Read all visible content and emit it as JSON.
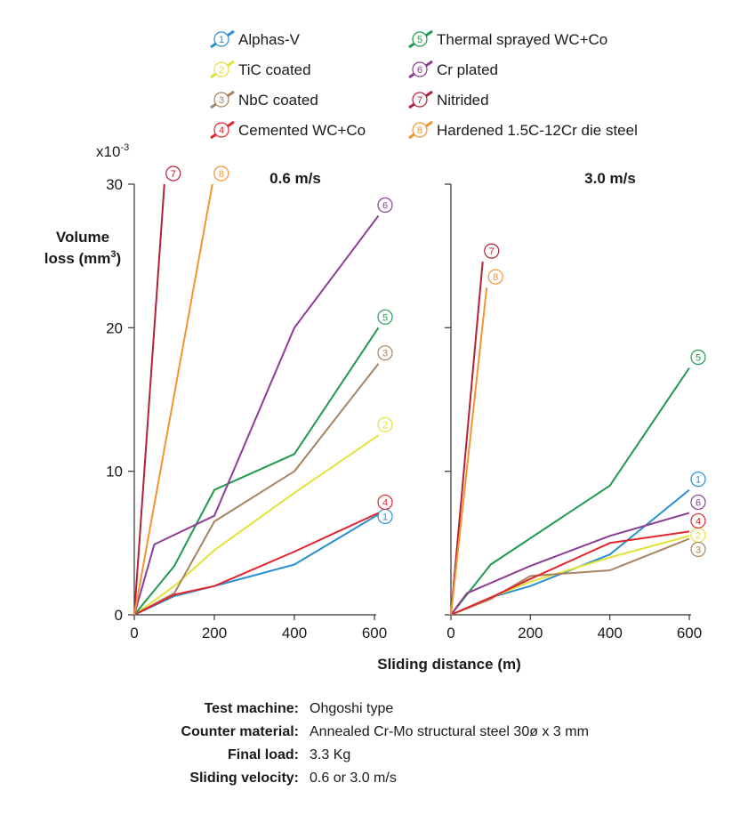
{
  "chart_data": {
    "type": "line",
    "scale_label": "x10",
    "scale_exponent": "-3",
    "ylabel_line1": "Volume",
    "ylabel_line2": "loss (mm",
    "ylabel_sup": "3",
    "ylabel_end": ")",
    "xlabel": "Sliding distance (m)",
    "ylim": [
      0,
      30
    ],
    "xlim": [
      0,
      600
    ],
    "yticks": [
      "0",
      "10",
      "20",
      "30"
    ],
    "xticks": [
      "0",
      "200",
      "400",
      "600"
    ],
    "legend": [
      {
        "num": "1",
        "name": "Alphas-V",
        "color": "#2a8fd0"
      },
      {
        "num": "2",
        "name": "TiC coated",
        "color": "#e3e236"
      },
      {
        "num": "3",
        "name": "NbC coated",
        "color": "#a8835f"
      },
      {
        "num": "4",
        "name": "Cemented WC+Co",
        "color": "#e2262e"
      },
      {
        "num": "5",
        "name": "Thermal sprayed WC+Co",
        "color": "#1f9a50"
      },
      {
        "num": "6",
        "name": "Cr plated",
        "color": "#8e3c96"
      },
      {
        "num": "7",
        "name": "Nitrided",
        "color": "#b3203b"
      },
      {
        "num": "8",
        "name": "Hardened 1.5C-12Cr die steel",
        "color": "#f2952e"
      }
    ],
    "panels": [
      {
        "title": "0.6 m/s",
        "series": [
          {
            "num": "1",
            "points": [
              [
                0,
                0
              ],
              [
                100,
                1.3
              ],
              [
                200,
                2.0
              ],
              [
                400,
                3.5
              ],
              [
                610,
                7.0
              ]
            ]
          },
          {
            "num": "2",
            "points": [
              [
                0,
                0
              ],
              [
                100,
                2.0
              ],
              [
                200,
                4.5
              ],
              [
                400,
                8.5
              ],
              [
                610,
                12.5
              ]
            ]
          },
          {
            "num": "3",
            "points": [
              [
                0,
                0
              ],
              [
                100,
                1.5
              ],
              [
                200,
                6.5
              ],
              [
                400,
                10.0
              ],
              [
                610,
                17.5
              ]
            ]
          },
          {
            "num": "4",
            "points": [
              [
                0,
                0
              ],
              [
                100,
                1.4
              ],
              [
                200,
                2.0
              ],
              [
                400,
                4.4
              ],
              [
                610,
                7.1
              ]
            ]
          },
          {
            "num": "5",
            "points": [
              [
                0,
                0
              ],
              [
                100,
                3.4
              ],
              [
                200,
                8.7
              ],
              [
                400,
                11.2
              ],
              [
                610,
                20.0
              ]
            ]
          },
          {
            "num": "6",
            "points": [
              [
                0,
                0
              ],
              [
                50,
                4.9
              ],
              [
                200,
                6.9
              ],
              [
                400,
                20.0
              ],
              [
                610,
                27.8
              ]
            ]
          },
          {
            "num": "7",
            "points": [
              [
                0,
                0
              ],
              [
                75,
                30.0
              ]
            ]
          },
          {
            "num": "8",
            "points": [
              [
                0,
                0
              ],
              [
                195,
                30.0
              ]
            ]
          }
        ]
      },
      {
        "title": "3.0 m/s",
        "series": [
          {
            "num": "1",
            "points": [
              [
                0,
                0
              ],
              [
                100,
                1.2
              ],
              [
                200,
                2.0
              ],
              [
                400,
                4.2
              ],
              [
                600,
                8.7
              ]
            ]
          },
          {
            "num": "2",
            "points": [
              [
                0,
                0
              ],
              [
                100,
                1.2
              ],
              [
                200,
                2.3
              ],
              [
                400,
                4.0
              ],
              [
                600,
                5.5
              ]
            ]
          },
          {
            "num": "3",
            "points": [
              [
                0,
                0
              ],
              [
                100,
                1.1
              ],
              [
                200,
                2.7
              ],
              [
                400,
                3.1
              ],
              [
                600,
                5.3
              ]
            ]
          },
          {
            "num": "4",
            "points": [
              [
                0,
                0
              ],
              [
                100,
                1.2
              ],
              [
                200,
                2.5
              ],
              [
                400,
                5.0
              ],
              [
                600,
                5.8
              ]
            ]
          },
          {
            "num": "5",
            "points": [
              [
                0,
                0
              ],
              [
                100,
                3.5
              ],
              [
                400,
                9.0
              ],
              [
                600,
                17.2
              ]
            ]
          },
          {
            "num": "6",
            "points": [
              [
                0,
                0
              ],
              [
                40,
                1.5
              ],
              [
                200,
                3.4
              ],
              [
                400,
                5.5
              ],
              [
                600,
                7.1
              ]
            ]
          },
          {
            "num": "7",
            "points": [
              [
                0,
                0
              ],
              [
                80,
                24.6
              ]
            ]
          },
          {
            "num": "8",
            "points": [
              [
                0,
                0
              ],
              [
                90,
                22.8
              ]
            ]
          }
        ]
      }
    ]
  },
  "conditions": [
    {
      "label": "Test machine:",
      "value": "Ohgoshi type"
    },
    {
      "label": "Counter material:",
      "value": "Annealed Cr-Mo structural steel 30ø x 3 mm"
    },
    {
      "label": "Final load:",
      "value": "3.3 Kg"
    },
    {
      "label": "Sliding velocity:",
      "value": "0.6 or 3.0 m/s"
    }
  ]
}
